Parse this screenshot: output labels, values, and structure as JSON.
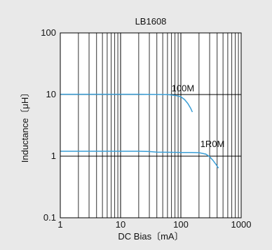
{
  "chart_data": {
    "type": "line",
    "title": "LB1608",
    "xlabel": "DC Bias〔mA〕",
    "ylabel": "Inductance〔μH〕",
    "xscale": "log",
    "yscale": "log",
    "xlim": [
      1,
      1000
    ],
    "ylim": [
      0.1,
      100
    ],
    "xticks": [
      {
        "value": 1,
        "label": "1"
      },
      {
        "value": 10,
        "label": "10"
      },
      {
        "value": 100,
        "label": "100"
      },
      {
        "value": 1000,
        "label": "1000"
      }
    ],
    "yticks": [
      {
        "value": 0.1,
        "label": "0.1"
      },
      {
        "value": 1,
        "label": "1"
      },
      {
        "value": 10,
        "label": "10"
      },
      {
        "value": 100,
        "label": "100"
      }
    ],
    "grid": true,
    "series": [
      {
        "name": "100M",
        "color": "#3a9ed6",
        "label_at": [
          70,
          11.2
        ],
        "x": [
          1,
          20,
          60,
          80,
          100,
          115,
          130,
          145,
          155
        ],
        "y": [
          10.1,
          10.1,
          10.0,
          9.7,
          9.2,
          8.3,
          7.2,
          6.0,
          5.2
        ]
      },
      {
        "name": "1R0M",
        "color": "#3a9ed6",
        "label_at": [
          210,
          1.4
        ],
        "x": [
          1,
          20,
          30,
          40,
          100,
          150,
          200,
          260,
          300,
          340,
          380,
          420
        ],
        "y": [
          1.2,
          1.2,
          1.19,
          1.16,
          1.15,
          1.15,
          1.14,
          1.08,
          0.98,
          0.86,
          0.74,
          0.64
        ]
      }
    ]
  }
}
